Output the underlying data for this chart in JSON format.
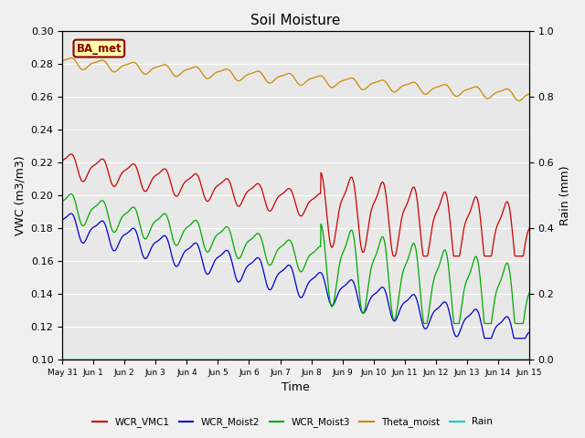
{
  "title": "Soil Moisture",
  "xlabel": "Time",
  "ylabel_left": "VWC (m3/m3)",
  "ylabel_right": "Rain (mm)",
  "ylim_left": [
    0.1,
    0.3
  ],
  "ylim_right": [
    0.0,
    1.0
  ],
  "yticks_left": [
    0.1,
    0.12,
    0.14,
    0.16,
    0.18,
    0.2,
    0.22,
    0.24,
    0.26,
    0.28,
    0.3
  ],
  "yticks_right": [
    0.0,
    0.2,
    0.4,
    0.6,
    0.8,
    1.0
  ],
  "background_color": "#e8e8e8",
  "figure_color": "#f0f0f0",
  "label_box_text": "BA_met",
  "label_box_facecolor": "#ffffaa",
  "label_box_edgecolor": "#8b0000",
  "series_colors": {
    "WCR_VMC1": "#cc0000",
    "WCR_Moist2": "#0000cc",
    "WCR_Moist3": "#00aa00",
    "Theta_moist": "#cc8800",
    "Rain": "#00cccc"
  },
  "legend_labels": [
    "WCR_VMC1",
    "WCR_Moist2",
    "WCR_Moist3",
    "Theta_moist",
    "Rain"
  ],
  "n_points": 1440,
  "xtick_days": [
    0,
    1,
    2,
    3,
    4,
    5,
    6,
    7,
    8,
    9,
    10,
    11,
    12,
    13,
    14,
    15
  ],
  "xtick_labels": [
    "May 31",
    "Jun 1",
    "Jun 2",
    "Jun 3",
    "Jun 4",
    "Jun 5",
    "Jun 6",
    "Jun 7",
    "Jun 8",
    "Jun 9",
    "Jun 10",
    "Jun 11",
    "Jun 12",
    "Jun 13",
    "Jun 14",
    "Jun 15"
  ]
}
